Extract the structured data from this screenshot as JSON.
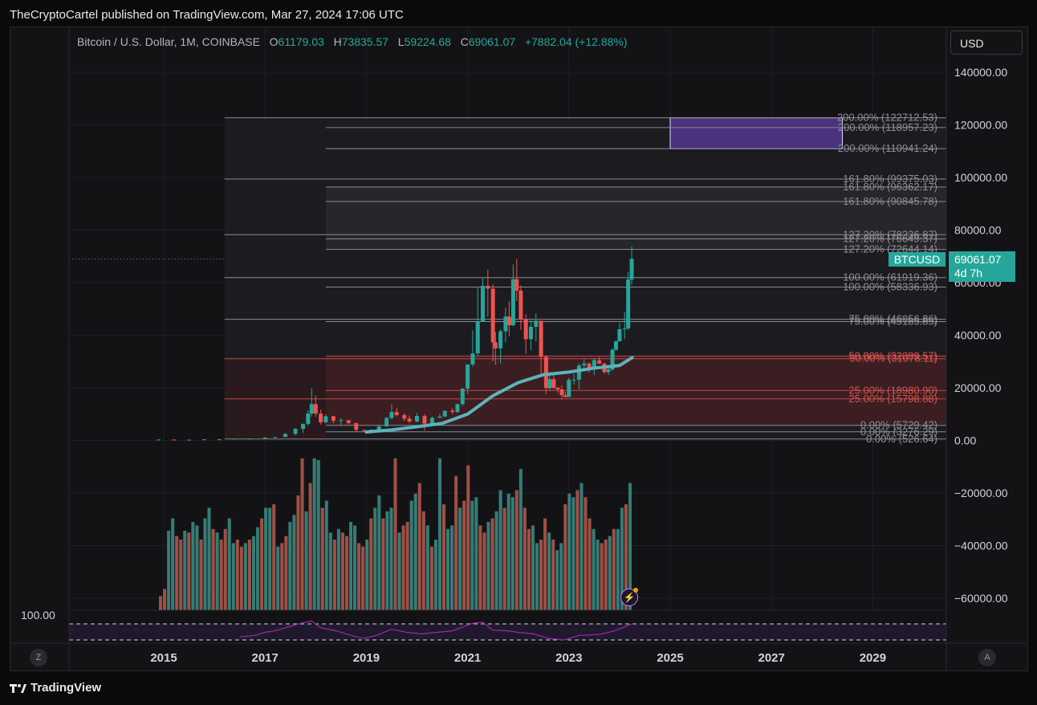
{
  "header": {
    "published": "TheCryptoCartel published on TradingView.com, Mar 27, 2024 17:06 UTC"
  },
  "legend": {
    "symbol": "Bitcoin / U.S. Dollar, 1M, COINBASE",
    "o_label": "O",
    "o": "61179.03",
    "h_label": "H",
    "h": "73835.57",
    "l_label": "L",
    "l": "59224.68",
    "c_label": "C",
    "c": "69061.07",
    "change": "+7882.04 (+12.88%)"
  },
  "currency_button": "USD",
  "price_tag": {
    "symbol": "BTCUSD",
    "price": "69061.07",
    "countdown": "4d 7h"
  },
  "rsi": {
    "upper_label": "100.00"
  },
  "corner": {
    "left": "Z",
    "right": "A"
  },
  "footer": {
    "brand": "TradingView"
  },
  "colors": {
    "up": "#26a69a",
    "down": "#ef5350",
    "ma": "#5fb2bb",
    "fib_box": "#5a3a9e",
    "rsi": "#9c27b0"
  },
  "chart_data": {
    "type": "candlestick",
    "title": "Bitcoin / U.S. Dollar, 1M, COINBASE",
    "y_ticks": [
      140000,
      120000,
      100000,
      80000,
      60000,
      40000,
      20000,
      0,
      -20000,
      -40000,
      -60000
    ],
    "y_tick_labels": [
      "140000.00",
      "120000.00",
      "100000.00",
      "80000.00",
      "60000.00",
      "40000.00",
      "20000.00",
      "0.00",
      "−20000.00",
      "−40000.00",
      "−60000.00"
    ],
    "x_tick_labels": [
      "2015",
      "2017",
      "2019",
      "2021",
      "2023",
      "2025",
      "2027",
      "2029"
    ],
    "x_ticks": [
      2015,
      2017,
      2019,
      2021,
      2023,
      2025,
      2027,
      2029
    ],
    "last_price": 69061.07,
    "fib_levels": [
      {
        "label": "200.00% (122712.53)",
        "value": 122712.53,
        "start": 2016.2
      },
      {
        "label": "200.00% (118957.23)",
        "value": 118957.23,
        "start": 2018.2
      },
      {
        "label": "200.00% (110941.24)",
        "value": 110941.24,
        "start": 2018.2
      },
      {
        "label": "161.80% (99375.03)",
        "value": 99375.03,
        "start": 2016.2
      },
      {
        "label": "161.80% (96362.17)",
        "value": 96362.17,
        "start": 2018.2
      },
      {
        "label": "161.80% (90845.78)",
        "value": 90845.78,
        "start": 2018.2
      },
      {
        "label": "127.20% (78236.87)",
        "value": 78236.87,
        "start": 2016.2
      },
      {
        "label": "127.20% (76649.37)",
        "value": 76649.37,
        "start": 2018.2
      },
      {
        "label": "127.20% (72644.14)",
        "value": 72644.14,
        "start": 2018.2
      },
      {
        "label": "100.00% (61919.36)",
        "value": 61919.36,
        "start": 2016.2
      },
      {
        "label": "100.00% (58336.93)",
        "value": 58336.93,
        "start": 2018.2
      },
      {
        "label": "75.00% (46056.86)",
        "value": 46056.86,
        "start": 2016.2
      },
      {
        "label": "75.00% (45185.85)",
        "value": 45185.85,
        "start": 2018.2
      },
      {
        "label": "50.00% (32099.57)",
        "value": 32099.57,
        "start": 2018.2
      },
      {
        "label": "50.00% (31078.11)",
        "value": 31078.11,
        "start": 2016.2
      },
      {
        "label": "25.00% (18980.90)",
        "value": 18980.9,
        "start": 2018.2
      },
      {
        "label": "25.00% (15798.88)",
        "value": 15798.88,
        "start": 2016.2
      },
      {
        "label": "0.00% (5729.42)",
        "value": 5729.42,
        "start": 2018.2
      },
      {
        "label": "0.00% (3276.29)",
        "value": 3276.29,
        "start": 2018.2
      },
      {
        "label": "0.00% (526.64)",
        "value": 526.64,
        "start": 2016.2
      }
    ],
    "fib_label_rows": [
      0,
      1,
      2,
      3,
      4,
      5,
      6,
      7,
      8,
      9,
      10,
      11,
      12,
      13,
      14,
      15,
      16,
      17,
      18,
      19
    ],
    "target_box": {
      "x0": 2025.0,
      "x1": 2028.4,
      "y0": 110941.24,
      "y1": 122712.53
    },
    "ohlc_series": [
      [
        2014.9,
        320,
        380,
        200,
        330
      ],
      [
        2015.2,
        330,
        300,
        180,
        250
      ],
      [
        2015.5,
        250,
        300,
        200,
        280
      ],
      [
        2015.8,
        280,
        460,
        250,
        430
      ],
      [
        2016.1,
        430,
        450,
        350,
        420
      ],
      [
        2016.4,
        420,
        700,
        400,
        650
      ],
      [
        2016.7,
        650,
        720,
        560,
        700
      ],
      [
        2017.0,
        700,
        1200,
        700,
        1050
      ],
      [
        2017.2,
        1050,
        1400,
        900,
        1300
      ],
      [
        2017.4,
        1300,
        2800,
        1300,
        2500
      ],
      [
        2017.6,
        2500,
        4700,
        1900,
        4400
      ],
      [
        2017.75,
        4400,
        6400,
        2900,
        6300
      ],
      [
        2017.85,
        6300,
        11400,
        5500,
        10200
      ],
      [
        2017.92,
        10200,
        19800,
        9000,
        13800
      ],
      [
        2018.0,
        13800,
        17200,
        9000,
        10200
      ],
      [
        2018.1,
        10200,
        11700,
        6000,
        6900
      ],
      [
        2018.2,
        6900,
        9900,
        6500,
        9200
      ],
      [
        2018.35,
        9200,
        9300,
        6500,
        7500
      ],
      [
        2018.5,
        7500,
        8500,
        5800,
        7700
      ],
      [
        2018.65,
        7700,
        7400,
        6100,
        6600
      ],
      [
        2018.8,
        6600,
        6700,
        3500,
        4000
      ],
      [
        2018.95,
        4000,
        4200,
        3200,
        3700
      ],
      [
        2019.1,
        3700,
        4100,
        3400,
        4100
      ],
      [
        2019.25,
        4100,
        5600,
        4000,
        5300
      ],
      [
        2019.4,
        5300,
        9000,
        5300,
        8500
      ],
      [
        2019.5,
        8500,
        13800,
        8000,
        10800
      ],
      [
        2019.6,
        10800,
        12300,
        9000,
        9600
      ],
      [
        2019.75,
        9600,
        10400,
        7300,
        8300
      ],
      [
        2019.85,
        8300,
        9500,
        6500,
        7200
      ],
      [
        2020.0,
        7200,
        10500,
        6900,
        9300
      ],
      [
        2020.15,
        9300,
        10000,
        3800,
        6400
      ],
      [
        2020.3,
        6400,
        9200,
        6200,
        8600
      ],
      [
        2020.45,
        8600,
        10100,
        8700,
        9100
      ],
      [
        2020.55,
        9100,
        11400,
        8900,
        11300
      ],
      [
        2020.7,
        11300,
        12400,
        10000,
        10800
      ],
      [
        2020.8,
        10800,
        14000,
        10400,
        13800
      ],
      [
        2020.9,
        13800,
        19900,
        13200,
        19700
      ],
      [
        2021.0,
        19700,
        29000,
        17600,
        28900
      ],
      [
        2021.1,
        28900,
        41900,
        28100,
        33100
      ],
      [
        2021.2,
        33100,
        58300,
        32300,
        45200
      ],
      [
        2021.3,
        45200,
        61700,
        45100,
        58800
      ],
      [
        2021.4,
        58800,
        64900,
        47000,
        57700
      ],
      [
        2021.5,
        57700,
        59500,
        30100,
        37300
      ],
      [
        2021.55,
        37300,
        41300,
        28800,
        35000
      ],
      [
        2021.65,
        35000,
        42300,
        29300,
        41500
      ],
      [
        2021.75,
        41500,
        50500,
        37300,
        47100
      ],
      [
        2021.82,
        47100,
        52900,
        39600,
        43800
      ],
      [
        2021.9,
        43800,
        66900,
        43300,
        61300
      ],
      [
        2021.97,
        61300,
        69000,
        53000,
        57000
      ],
      [
        2022.05,
        57000,
        59000,
        42000,
        46200
      ],
      [
        2022.15,
        46200,
        48000,
        33000,
        38500
      ],
      [
        2022.25,
        38500,
        45800,
        34300,
        43200
      ],
      [
        2022.35,
        43200,
        48200,
        37700,
        45500
      ],
      [
        2022.45,
        45500,
        40000,
        25400,
        31800
      ],
      [
        2022.55,
        31800,
        32400,
        17600,
        19900
      ],
      [
        2022.62,
        19900,
        24600,
        18800,
        23300
      ],
      [
        2022.7,
        23300,
        25200,
        19500,
        20000
      ],
      [
        2022.78,
        20000,
        20400,
        18100,
        19400
      ],
      [
        2022.86,
        19400,
        21000,
        15500,
        17200
      ],
      [
        2022.93,
        17200,
        18400,
        16300,
        16500
      ],
      [
        2023.0,
        16500,
        23900,
        16500,
        23100
      ],
      [
        2023.1,
        23100,
        25300,
        21300,
        23100
      ],
      [
        2023.2,
        23100,
        29200,
        19500,
        28500
      ],
      [
        2023.3,
        28500,
        31000,
        26900,
        29200
      ],
      [
        2023.4,
        29200,
        29800,
        25800,
        27200
      ],
      [
        2023.5,
        27200,
        31400,
        24800,
        30500
      ],
      [
        2023.6,
        30500,
        31800,
        29000,
        29200
      ],
      [
        2023.7,
        29200,
        29600,
        25200,
        26000
      ],
      [
        2023.78,
        26000,
        28000,
        24900,
        27000
      ],
      [
        2023.86,
        27000,
        35000,
        26500,
        34500
      ],
      [
        2023.93,
        34500,
        38000,
        34000,
        37700
      ],
      [
        2024.0,
        37700,
        44700,
        37600,
        42300
      ],
      [
        2024.1,
        42300,
        48900,
        38500,
        42600
      ],
      [
        2024.17,
        42600,
        64000,
        41900,
        61200
      ],
      [
        2024.24,
        61200,
        73800,
        59200,
        69061
      ]
    ],
    "ma_series": [
      [
        2019.0,
        3200
      ],
      [
        2019.5,
        4000
      ],
      [
        2020.0,
        5200
      ],
      [
        2020.5,
        6500
      ],
      [
        2021.0,
        10000
      ],
      [
        2021.5,
        17000
      ],
      [
        2022.0,
        22000
      ],
      [
        2022.5,
        25000
      ],
      [
        2023.0,
        26000
      ],
      [
        2023.5,
        27500
      ],
      [
        2024.0,
        28500
      ],
      [
        2024.25,
        31500
      ]
    ],
    "volume_bars": [
      8,
      12,
      45,
      52,
      42,
      40,
      45,
      44,
      50,
      48,
      40,
      52,
      58,
      46,
      44,
      40,
      46,
      52,
      38,
      40,
      36,
      38,
      40,
      42,
      47,
      52,
      58,
      58,
      60,
      36,
      38,
      42,
      50,
      54,
      65,
      86,
      56,
      72,
      86,
      85,
      58,
      62,
      44,
      40,
      46,
      44,
      42,
      50,
      48,
      38,
      36,
      40,
      52,
      58,
      65,
      52,
      56,
      58,
      86,
      44,
      48,
      50,
      62,
      66,
      72,
      56,
      48,
      36,
      40,
      86,
      60,
      46,
      48,
      76,
      58,
      62,
      82,
      62,
      64,
      48,
      44,
      50,
      52,
      56,
      68,
      58,
      66,
      64,
      68,
      80,
      58,
      46,
      48,
      38,
      40,
      52,
      44,
      40,
      34,
      38,
      60,
      66,
      64,
      68,
      72,
      64,
      52,
      46,
      40,
      38,
      40,
      42,
      46,
      46,
      58,
      60,
      72
    ],
    "rsi_series": [
      [
        2016.5,
        40
      ],
      [
        2016.8,
        45
      ],
      [
        2017.0,
        55
      ],
      [
        2017.2,
        60
      ],
      [
        2017.4,
        70
      ],
      [
        2017.6,
        80
      ],
      [
        2017.8,
        88
      ],
      [
        2017.92,
        92
      ],
      [
        2018.1,
        70
      ],
      [
        2018.4,
        60
      ],
      [
        2018.7,
        45
      ],
      [
        2018.95,
        35
      ],
      [
        2019.2,
        45
      ],
      [
        2019.5,
        65
      ],
      [
        2019.8,
        55
      ],
      [
        2020.1,
        50
      ],
      [
        2020.4,
        55
      ],
      [
        2020.7,
        60
      ],
      [
        2020.9,
        72
      ],
      [
        2021.1,
        85
      ],
      [
        2021.3,
        88
      ],
      [
        2021.5,
        62
      ],
      [
        2021.8,
        60
      ],
      [
        2022.0,
        55
      ],
      [
        2022.3,
        50
      ],
      [
        2022.6,
        35
      ],
      [
        2022.9,
        30
      ],
      [
        2023.2,
        45
      ],
      [
        2023.6,
        48
      ],
      [
        2023.9,
        60
      ],
      [
        2024.24,
        82
      ]
    ]
  }
}
